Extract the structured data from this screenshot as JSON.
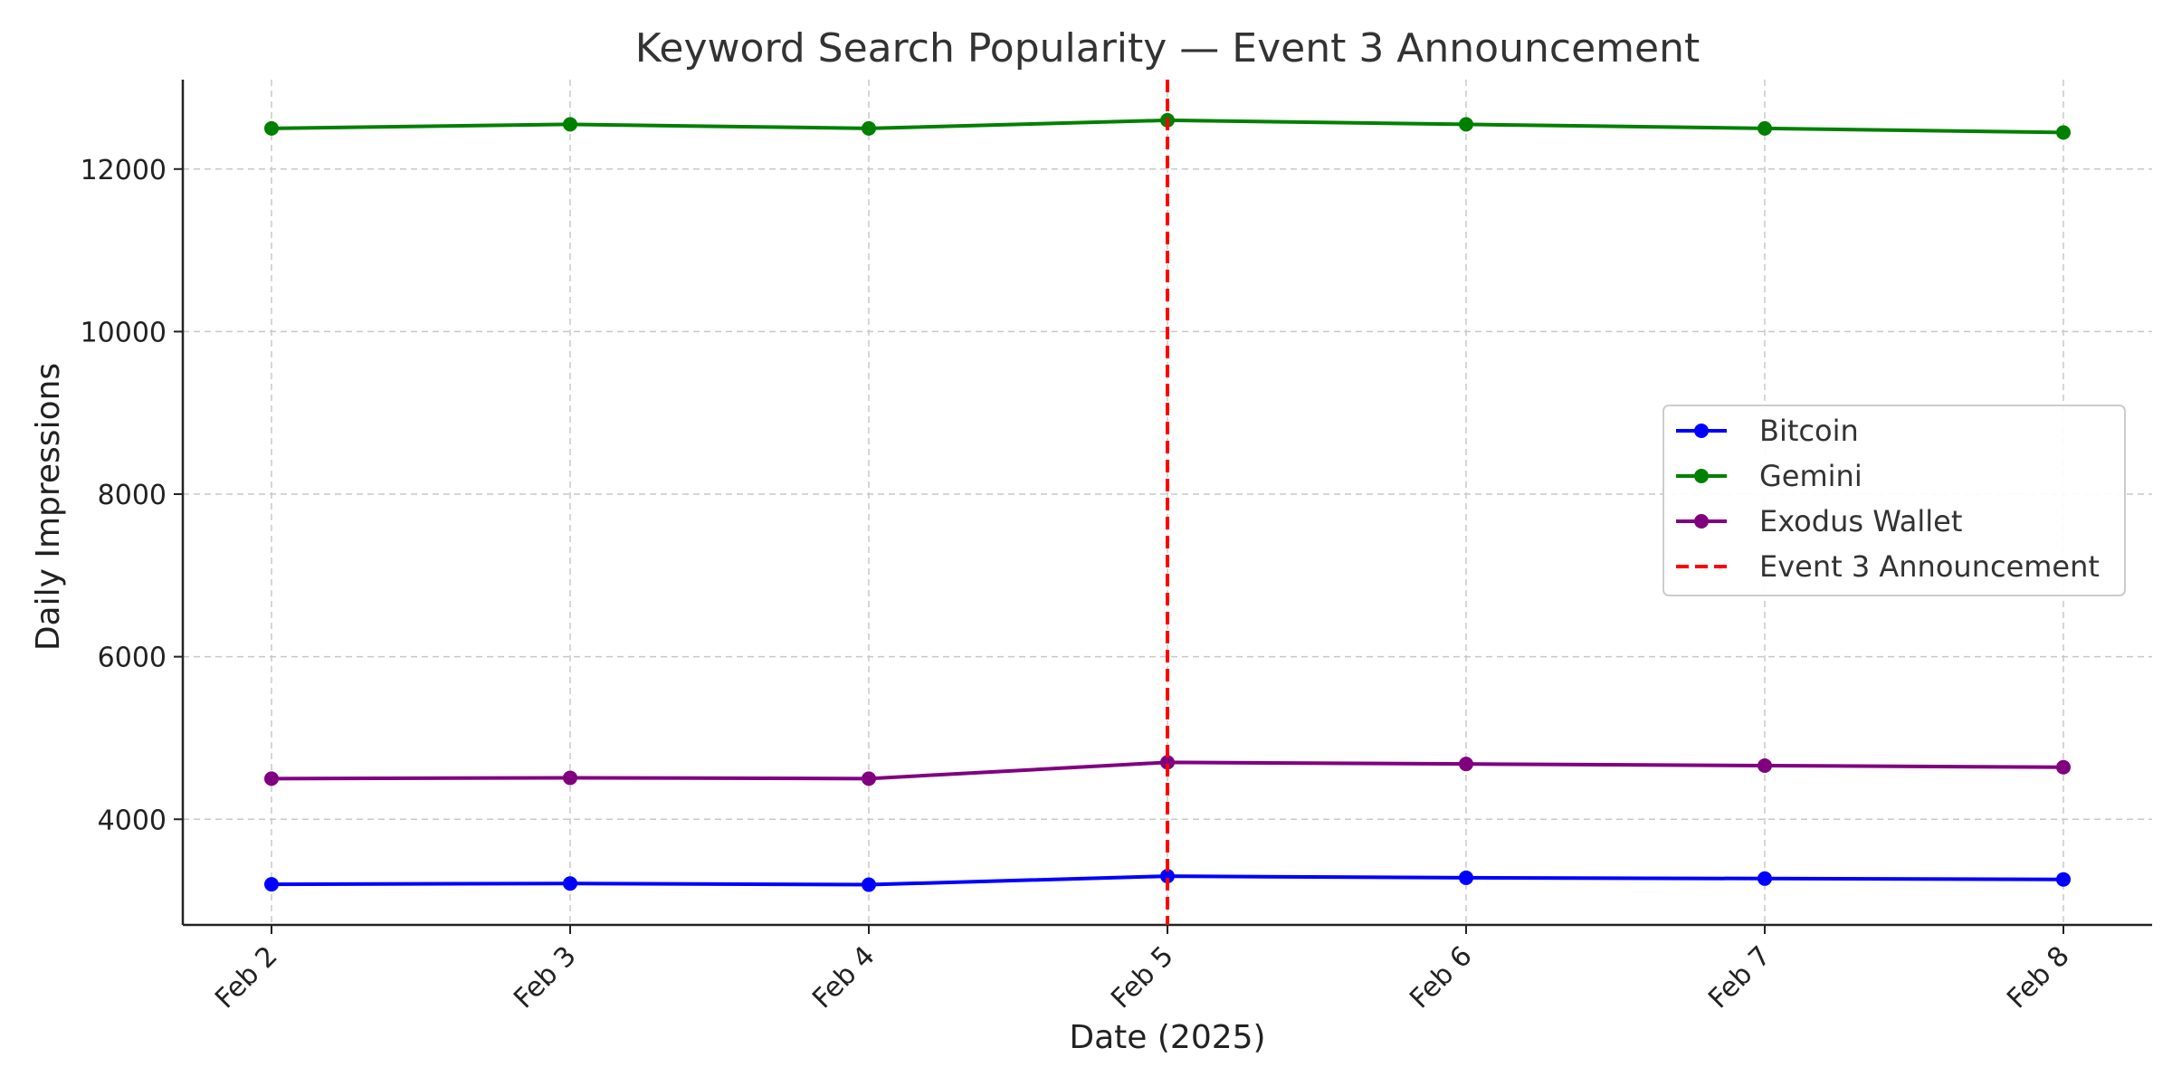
{
  "chart_data": {
    "type": "line",
    "title": "Keyword Search Popularity — Event 3 Announcement",
    "xlabel": "Date (2025)",
    "ylabel": "Daily Impressions",
    "categories": [
      "Feb 2",
      "Feb 3",
      "Feb 4",
      "Feb 5",
      "Feb 6",
      "Feb 7",
      "Feb 8"
    ],
    "ylim": [
      2700,
      13100
    ],
    "yticks": [
      4000,
      6000,
      8000,
      10000,
      12000
    ],
    "grid": true,
    "legend_position": "center-right",
    "series": [
      {
        "name": "Bitcoin",
        "color": "#0000ff",
        "values": [
          3200,
          3210,
          3195,
          3300,
          3280,
          3270,
          3260
        ]
      },
      {
        "name": "Gemini",
        "color": "#008000",
        "values": [
          12500,
          12550,
          12500,
          12600,
          12550,
          12500,
          12450
        ]
      },
      {
        "name": "Exodus Wallet",
        "color": "#800080",
        "values": [
          4500,
          4510,
          4500,
          4700,
          4680,
          4660,
          4640
        ]
      }
    ],
    "event_line": {
      "category": "Feb 5",
      "label": "Event 3 Announcement",
      "color": "#ff0000",
      "style": "dashed"
    }
  }
}
